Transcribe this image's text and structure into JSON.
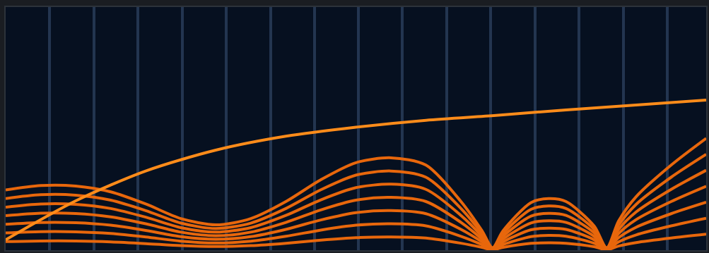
{
  "chart_data": {
    "type": "line",
    "xlim": [
      0,
      1000
    ],
    "ylim": [
      0,
      350
    ],
    "xticks": [
      62.5,
      126,
      188.5,
      252,
      314.5,
      378,
      440.5,
      504,
      566.5,
      630,
      692.5,
      756,
      818.5,
      882,
      944.5
    ],
    "grid": true,
    "tick_labels": false,
    "x": [
      0,
      50,
      100,
      150,
      200,
      250,
      300,
      350,
      400,
      450,
      500,
      550,
      600,
      650,
      680,
      695,
      710,
      750,
      775,
      800,
      840,
      858,
      875,
      900,
      950,
      1000
    ],
    "series": [
      {
        "color": "#e8670c",
        "values": [
          12.4,
          13.3,
          13.2,
          12,
          9.5,
          6.5,
          5.2,
          6.5,
          10,
          14.5,
          18,
          19,
          17.5,
          10,
          4,
          0.5,
          4,
          9.8,
          10.6,
          10,
          5,
          0.5,
          6,
          11,
          17.5,
          23
        ]
      },
      {
        "color": "#e8670c",
        "values": [
          24.8,
          26.6,
          26.4,
          24,
          19,
          13,
          10.4,
          13,
          20,
          29,
          36,
          38,
          35,
          20,
          8,
          1,
          8,
          19.6,
          21.2,
          20,
          10,
          1,
          12,
          22,
          35,
          46
        ]
      },
      {
        "color": "#e8670c",
        "values": [
          37.2,
          39.9,
          39.6,
          36,
          28.5,
          19.5,
          15.6,
          19.5,
          30,
          43.5,
          54,
          57,
          52.5,
          30,
          12,
          1.5,
          12,
          29.4,
          31.8,
          30,
          15,
          1.5,
          18,
          33,
          52.5,
          69
        ]
      },
      {
        "color": "#e8670c",
        "values": [
          49.6,
          53.2,
          52.8,
          48,
          38,
          26,
          20.8,
          26,
          40,
          58,
          72,
          76,
          70,
          40,
          16,
          2,
          16,
          39.2,
          42.4,
          40,
          20,
          2,
          24,
          44,
          70,
          92
        ]
      },
      {
        "color": "#e8670c",
        "values": [
          62,
          66.5,
          66,
          60,
          47.5,
          32.5,
          26,
          32.5,
          50,
          72.5,
          90,
          95,
          87.5,
          50,
          20,
          2.5,
          20,
          49,
          53,
          50,
          25,
          2.5,
          30,
          55,
          87.5,
          115
        ]
      },
      {
        "color": "#e8670c",
        "values": [
          74.4,
          79.8,
          79.2,
          72,
          57,
          39,
          31.2,
          39,
          60,
          87,
          108,
          114,
          105,
          60,
          24,
          3,
          24,
          58.8,
          63.6,
          60,
          30,
          3,
          36,
          66,
          105,
          138
        ]
      },
      {
        "color": "#e8670c",
        "values": [
          86.8,
          93.1,
          92.4,
          84,
          66.5,
          45.5,
          36.4,
          45.5,
          70,
          101.5,
          126,
          133,
          122.5,
          70,
          28,
          3.5,
          28,
          68.6,
          74.2,
          70,
          35,
          3.5,
          42,
          77,
          122.5,
          161
        ]
      },
      {
        "color": "#ff8c1a",
        "x": [
          0,
          100,
          200,
          300,
          400,
          500,
          600,
          700,
          800,
          900,
          1000
        ],
        "values": [
          15,
          71,
          114,
          144,
          164,
          177,
          187,
          194,
          202,
          209,
          216
        ]
      }
    ]
  }
}
